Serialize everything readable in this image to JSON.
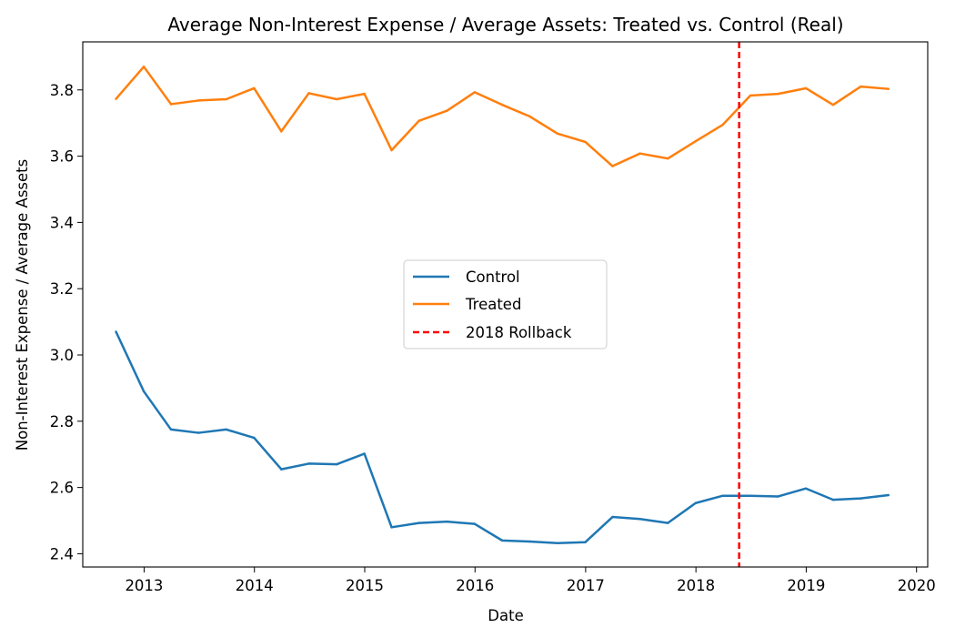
{
  "chart_data": {
    "type": "line",
    "title": "Average Non-Interest Expense / Average Assets: Treated vs. Control (Real)",
    "xlabel": "Date",
    "ylabel": "Non-Interest Expense / Average Assets",
    "x_ticks": [
      "2013",
      "2014",
      "2015",
      "2016",
      "2017",
      "2018",
      "2019",
      "2020"
    ],
    "y_ticks": [
      "2.4",
      "2.6",
      "2.8",
      "3.0",
      "3.2",
      "3.4",
      "3.6",
      "3.8"
    ],
    "xlim": [
      "2012-06-12",
      "2020-02-07"
    ],
    "ylim": [
      2.36,
      3.945
    ],
    "x": [
      "2012-09-30",
      "2012-12-31",
      "2013-03-31",
      "2013-06-30",
      "2013-09-30",
      "2013-12-31",
      "2014-03-31",
      "2014-06-30",
      "2014-09-30",
      "2014-12-31",
      "2015-03-31",
      "2015-06-30",
      "2015-09-30",
      "2015-12-31",
      "2016-03-31",
      "2016-06-30",
      "2016-09-30",
      "2016-12-31",
      "2017-03-31",
      "2017-06-30",
      "2017-09-30",
      "2017-12-31",
      "2018-03-31",
      "2018-06-30",
      "2018-09-30",
      "2018-12-31",
      "2019-03-31",
      "2019-06-30",
      "2019-09-30"
    ],
    "series": [
      {
        "name": "Control",
        "color": "#1f77b4",
        "values": [
          3.07,
          2.89,
          2.775,
          2.765,
          2.775,
          2.75,
          2.655,
          2.672,
          2.67,
          2.702,
          2.48,
          2.493,
          2.497,
          2.49,
          2.44,
          2.437,
          2.432,
          2.435,
          2.511,
          2.505,
          2.493,
          2.553,
          2.575,
          2.575,
          2.573,
          2.597,
          2.563,
          2.567,
          2.577
        ]
      },
      {
        "name": "Treated",
        "color": "#ff7f0e",
        "values": [
          3.773,
          3.87,
          3.757,
          3.768,
          3.772,
          3.805,
          3.675,
          3.79,
          3.772,
          3.788,
          3.618,
          3.707,
          3.737,
          3.793,
          3.755,
          3.72,
          3.668,
          3.643,
          3.57,
          3.608,
          3.593,
          3.645,
          3.695,
          3.783,
          3.788,
          3.805,
          3.755,
          3.81,
          3.803
        ]
      }
    ],
    "vline": {
      "name": "2018 Rollback",
      "x": "2018-05-24",
      "color": "#ff0000",
      "style": "dashed"
    },
    "legend": {
      "placement": "center",
      "entries": [
        {
          "label": "Control",
          "color": "#1f77b4",
          "style": "solid"
        },
        {
          "label": "Treated",
          "color": "#ff7f0e",
          "style": "solid"
        },
        {
          "label": "2018 Rollback",
          "color": "#ff0000",
          "style": "dashed"
        }
      ]
    },
    "grid": false
  }
}
